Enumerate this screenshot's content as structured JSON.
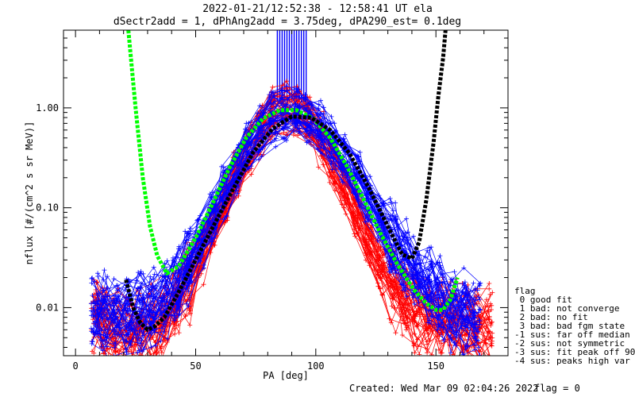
{
  "header": {
    "title_line1": "2022-01-21/12:52:38 - 12:58:41 UT ela",
    "title_line2": "dSectr2add = 1, dPhAng2add = 3.75deg, dPA290_est=   0.1deg"
  },
  "footer": {
    "created": "Created: Wed Mar 09 02:04:26 2022",
    "flag": "flag = 0"
  },
  "legend": {
    "title": "flag",
    "items": [
      " 0 good fit",
      " 1 bad: not converge",
      " 2 bad: no fit",
      " 3 bad: bad fgm state",
      "-1 sus: far off median",
      "-2 sus: not symmetric",
      "-3 sus: fit peak off 90",
      "-4 sus: peaks high var"
    ]
  },
  "colors": {
    "red_series": "#ff0000",
    "blue_series": "#0000ff",
    "green_fit": "#00ff00",
    "black_fit": "#000000"
  },
  "chart_data": {
    "type": "line",
    "xlabel": "PA [deg]",
    "ylabel": "nflux [#/(cm^2 s sr MeV)]",
    "xlim": [
      -5,
      180
    ],
    "ylim": [
      0.0033,
      6.0
    ],
    "yscale": "log",
    "xticks": [
      0,
      50,
      100,
      150
    ],
    "xtick_labels": [
      "0",
      "50",
      "100",
      "150"
    ],
    "yticks": [
      0.01,
      0.1,
      1.0
    ],
    "ytick_labels": [
      "0.01",
      "0.10",
      "1.00"
    ],
    "series": [
      {
        "color": "red",
        "x": [
          8,
          12,
          17,
          22,
          27,
          32,
          37,
          42,
          47,
          52,
          57,
          62,
          67,
          72,
          77,
          82,
          87,
          92,
          97,
          102,
          107,
          112,
          117,
          122,
          127,
          132,
          137,
          142,
          147,
          152,
          157,
          162,
          167,
          172
        ],
        "y": [
          0.008,
          0.0065,
          0.006,
          0.0055,
          0.0055,
          0.006,
          0.0075,
          0.011,
          0.018,
          0.032,
          0.06,
          0.11,
          0.2,
          0.38,
          0.6,
          0.85,
          0.98,
          0.9,
          0.72,
          0.48,
          0.28,
          0.16,
          0.085,
          0.045,
          0.025,
          0.016,
          0.012,
          0.009,
          0.008,
          0.0075,
          0.007,
          0.0068,
          0.0065,
          0.0062
        ]
      },
      {
        "color": "blue",
        "x": [
          8,
          12,
          17,
          22,
          27,
          32,
          37,
          42,
          47,
          52,
          57,
          62,
          67,
          72,
          77,
          82,
          87,
          92,
          97,
          102,
          107,
          112,
          117,
          122,
          127,
          132,
          137,
          142,
          147,
          152,
          157,
          162,
          167
        ],
        "y": [
          0.009,
          0.0085,
          0.008,
          0.0085,
          0.009,
          0.01,
          0.012,
          0.016,
          0.026,
          0.045,
          0.08,
          0.14,
          0.24,
          0.4,
          0.58,
          0.75,
          0.85,
          0.86,
          0.78,
          0.62,
          0.44,
          0.3,
          0.19,
          0.12,
          0.075,
          0.045,
          0.03,
          0.02,
          0.015,
          0.012,
          0.01,
          0.009,
          0.0085
        ]
      }
    ],
    "fits": [
      {
        "color": "green",
        "style": "dashed",
        "x": [
          22,
          25,
          28,
          31,
          34,
          38,
          43,
          50,
          57,
          64,
          71,
          78,
          85,
          92,
          99,
          106,
          113,
          120,
          127,
          134,
          141,
          146,
          150,
          153,
          156,
          159
        ],
        "y": [
          6.0,
          1.0,
          0.2,
          0.065,
          0.033,
          0.022,
          0.026,
          0.05,
          0.11,
          0.25,
          0.5,
          0.78,
          0.95,
          0.95,
          0.78,
          0.5,
          0.26,
          0.12,
          0.055,
          0.027,
          0.015,
          0.011,
          0.0095,
          0.0095,
          0.012,
          0.02
        ]
      },
      {
        "color": "black",
        "style": "dashed",
        "x": [
          21,
          24,
          27,
          30,
          33,
          37,
          42,
          50,
          58,
          66,
          74,
          82,
          90,
          98,
          106,
          114,
          122,
          130,
          136,
          140,
          143,
          146,
          149,
          151,
          153,
          154
        ],
        "y": [
          0.019,
          0.01,
          0.007,
          0.006,
          0.0065,
          0.008,
          0.013,
          0.03,
          0.07,
          0.16,
          0.36,
          0.62,
          0.82,
          0.8,
          0.6,
          0.35,
          0.16,
          0.065,
          0.034,
          0.031,
          0.045,
          0.12,
          0.45,
          1.3,
          3.2,
          6.0
        ]
      }
    ],
    "spikes": {
      "color": "blue",
      "x": [
        84,
        85,
        86,
        87,
        88,
        89,
        90,
        91,
        92,
        93,
        94,
        95,
        96
      ],
      "y_low": 1.15,
      "y_high": 6.0
    }
  }
}
